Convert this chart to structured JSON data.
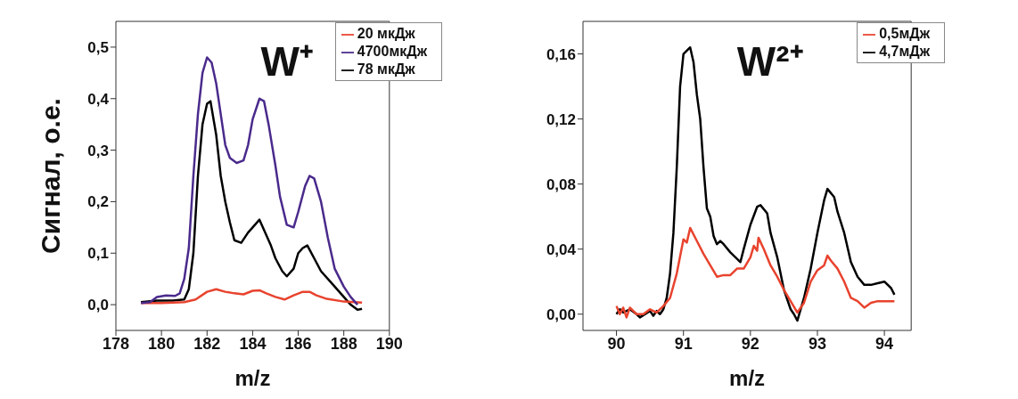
{
  "chart_data": [
    {
      "type": "line",
      "title": "W⁺",
      "xlabel": "m/z",
      "ylabel": "Сигнал, о.е.",
      "xlim": [
        178,
        190
      ],
      "xticks": [
        178,
        180,
        182,
        184,
        186,
        188,
        190
      ],
      "ylim": [
        -0.05,
        0.55
      ],
      "yticks": [
        {
          "value": 0,
          "label": "0,0"
        },
        {
          "value": 0.1,
          "label": "0,1"
        },
        {
          "value": 0.2,
          "label": "0,2"
        },
        {
          "value": 0.3,
          "label": "0,3"
        },
        {
          "value": 0.4,
          "label": "0,4"
        },
        {
          "value": 0.5,
          "label": "0,5"
        }
      ],
      "grid": false,
      "legend": "top right",
      "marker": "none",
      "line_style": "solid",
      "series": [
        {
          "name": "78 мкДж",
          "color": "#000000",
          "x": [
            179.1,
            179.8,
            180.5,
            181.0,
            181.2,
            181.4,
            181.6,
            181.8,
            182.0,
            182.15,
            182.4,
            182.6,
            182.8,
            183.0,
            183.2,
            183.5,
            183.8,
            184.0,
            184.3,
            184.5,
            184.8,
            185.0,
            185.3,
            185.5,
            185.8,
            186.0,
            186.2,
            186.4,
            186.7,
            187.0,
            187.5,
            188.0,
            188.3,
            188.6,
            188.8
          ],
          "values": [
            0.005,
            0.008,
            0.008,
            0.01,
            0.03,
            0.1,
            0.25,
            0.35,
            0.39,
            0.395,
            0.33,
            0.25,
            0.2,
            0.16,
            0.125,
            0.12,
            0.14,
            0.15,
            0.165,
            0.145,
            0.115,
            0.09,
            0.065,
            0.055,
            0.07,
            0.1,
            0.11,
            0.115,
            0.09,
            0.065,
            0.04,
            0.015,
            0.0,
            -0.01,
            -0.008
          ]
        },
        {
          "name": "20 мкДж",
          "color": "#e8432e",
          "x": [
            179.1,
            180.0,
            181.0,
            181.5,
            182.0,
            182.4,
            182.8,
            183.2,
            183.6,
            184.0,
            184.3,
            184.6,
            185.0,
            185.4,
            185.8,
            186.2,
            186.5,
            186.8,
            187.2,
            188.0,
            188.8
          ],
          "values": [
            0.003,
            0.003,
            0.005,
            0.01,
            0.025,
            0.03,
            0.025,
            0.022,
            0.02,
            0.027,
            0.028,
            0.022,
            0.015,
            0.01,
            0.018,
            0.025,
            0.025,
            0.018,
            0.012,
            0.006,
            0.004
          ]
        },
        {
          "name": "4700мкДж",
          "color": "#4a2a8c",
          "x": [
            179.1,
            179.5,
            179.8,
            180.2,
            180.6,
            180.8,
            181.0,
            181.2,
            181.4,
            181.6,
            181.8,
            182.0,
            182.2,
            182.4,
            182.6,
            182.8,
            183.0,
            183.3,
            183.6,
            183.8,
            184.0,
            184.3,
            184.5,
            184.7,
            185.0,
            185.2,
            185.5,
            185.8,
            186.0,
            186.3,
            186.5,
            186.7,
            187.0,
            187.3,
            187.6,
            188.0,
            188.3,
            188.6
          ],
          "values": [
            0.003,
            0.005,
            0.015,
            0.018,
            0.017,
            0.022,
            0.05,
            0.11,
            0.25,
            0.37,
            0.45,
            0.48,
            0.47,
            0.43,
            0.37,
            0.31,
            0.285,
            0.275,
            0.28,
            0.31,
            0.36,
            0.4,
            0.395,
            0.35,
            0.27,
            0.21,
            0.155,
            0.15,
            0.18,
            0.23,
            0.25,
            0.245,
            0.2,
            0.13,
            0.07,
            0.035,
            0.015,
            0.0
          ]
        }
      ]
    },
    {
      "type": "line",
      "title": "W²⁺",
      "xlabel": "m/z",
      "xlim": [
        89.5,
        94.4
      ],
      "xticks": [
        90,
        91,
        92,
        93,
        94
      ],
      "ylim": [
        -0.01,
        0.18
      ],
      "yticks": [
        {
          "value": 0,
          "label": "0,00"
        },
        {
          "value": 0.04,
          "label": "0,04"
        },
        {
          "value": 0.08,
          "label": "0,08"
        },
        {
          "value": 0.12,
          "label": "0,12"
        },
        {
          "value": 0.16,
          "label": "0,16"
        }
      ],
      "grid": false,
      "legend": "top right",
      "marker": "none",
      "line_style": "solid",
      "series": [
        {
          "name": "4,7мДж",
          "color": "#000000",
          "x": [
            90.0,
            90.05,
            90.1,
            90.2,
            90.3,
            90.35,
            90.5,
            90.55,
            90.6,
            90.65,
            90.7,
            90.75,
            90.8,
            90.85,
            90.9,
            90.95,
            91.0,
            91.1,
            91.15,
            91.2,
            91.25,
            91.3,
            91.35,
            91.4,
            91.45,
            91.5,
            91.55,
            91.6,
            91.7,
            91.8,
            91.85,
            91.9,
            92.0,
            92.1,
            92.15,
            92.25,
            92.3,
            92.4,
            92.5,
            92.6,
            92.65,
            92.7,
            92.8,
            92.9,
            93.0,
            93.1,
            93.15,
            93.25,
            93.3,
            93.4,
            93.5,
            93.6,
            93.7,
            93.8,
            93.9,
            94.0,
            94.1,
            94.15
          ],
          "values": [
            0.0,
            0.003,
            0.001,
            0.003,
            0.0,
            -0.002,
            0.002,
            -0.001,
            0.002,
            0.0,
            0.003,
            0.01,
            0.025,
            0.05,
            0.09,
            0.14,
            0.16,
            0.164,
            0.155,
            0.135,
            0.12,
            0.09,
            0.065,
            0.06,
            0.048,
            0.043,
            0.045,
            0.043,
            0.038,
            0.034,
            0.032,
            0.04,
            0.055,
            0.066,
            0.067,
            0.062,
            0.05,
            0.035,
            0.015,
            0.003,
            0.0,
            -0.004,
            0.01,
            0.028,
            0.05,
            0.07,
            0.077,
            0.072,
            0.063,
            0.05,
            0.032,
            0.023,
            0.018,
            0.018,
            0.019,
            0.02,
            0.016,
            0.012
          ]
        },
        {
          "name": "0,5мДж",
          "color": "#e8432e",
          "x": [
            90.0,
            90.05,
            90.1,
            90.15,
            90.2,
            90.3,
            90.4,
            90.5,
            90.6,
            90.7,
            90.8,
            90.9,
            91.0,
            91.05,
            91.1,
            91.2,
            91.3,
            91.4,
            91.5,
            91.6,
            91.7,
            91.8,
            91.9,
            92.0,
            92.05,
            92.1,
            92.12,
            92.2,
            92.3,
            92.4,
            92.5,
            92.6,
            92.7,
            92.8,
            92.9,
            93.0,
            93.1,
            93.15,
            93.2,
            93.3,
            93.4,
            93.5,
            93.6,
            93.7,
            93.8,
            93.9,
            94.0,
            94.15
          ],
          "values": [
            0.005,
            0.0,
            0.004,
            -0.002,
            0.004,
            0.0,
            0.0,
            0.003,
            0.001,
            0.005,
            0.01,
            0.025,
            0.046,
            0.044,
            0.053,
            0.045,
            0.037,
            0.03,
            0.023,
            0.024,
            0.024,
            0.028,
            0.028,
            0.035,
            0.042,
            0.039,
            0.047,
            0.04,
            0.03,
            0.023,
            0.015,
            0.008,
            0.001,
            0.007,
            0.02,
            0.027,
            0.03,
            0.036,
            0.033,
            0.028,
            0.02,
            0.01,
            0.008,
            0.004,
            0.007,
            0.008,
            0.008,
            0.008
          ]
        }
      ]
    }
  ]
}
